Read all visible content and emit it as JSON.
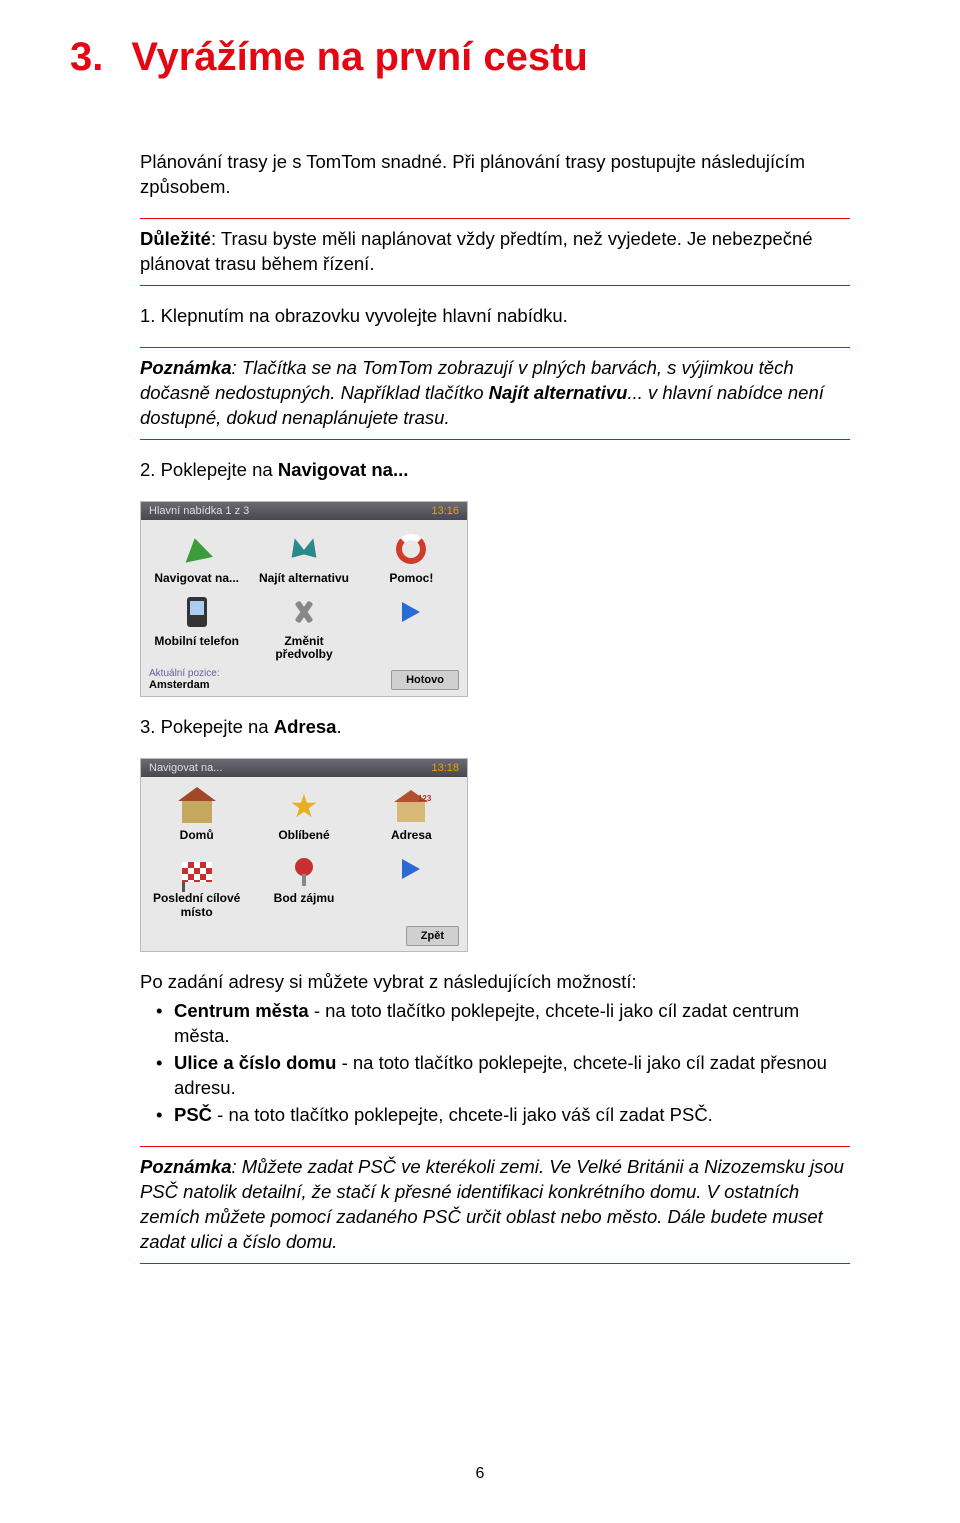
{
  "chapter": {
    "number": "3.",
    "title": "Vyrážíme na první cestu"
  },
  "intro": "Plánování trasy je s TomTom snadné. Při plánování trasy postupujte následujícím způsobem.",
  "warning": {
    "label": "Důležité",
    "text": ": Trasu byste měli naplánovat vždy předtím, než vyjedete. Je nebezpečné plánovat trasu během řízení."
  },
  "step1": "1. Klepnutím na obrazovku vyvolejte hlavní nabídku.",
  "note1": {
    "label": "Poznámka",
    "text1": ": Tlačítka se na TomTom zobrazují v plných barvách, s výjimkou těch dočasně nedostupných. Například tlačítko ",
    "bold": "Najít alternativu",
    "text2": "... v hlavní nabídce není dostupné, dokud nenaplánujete trasu."
  },
  "step2_pre": "2. Poklepejte na ",
  "step2_bold": "Navigovat na...",
  "screenshot1": {
    "header_left": "Hlavní nabídka 1 z 3",
    "header_time": "13:16",
    "cells": [
      {
        "label": "Navigovat na...",
        "icon": "arrow-green"
      },
      {
        "label": "Najít alternativu",
        "icon": "arrows-teal"
      },
      {
        "label": "Pomoc!",
        "icon": "ring"
      },
      {
        "label": "Mobilní telefon",
        "icon": "phone"
      },
      {
        "label": "Změnit předvolby",
        "icon": "wrench"
      },
      {
        "label": "",
        "icon": "play"
      }
    ],
    "footer_left_label": "Aktuální pozice:",
    "footer_left_value": "Amsterdam",
    "footer_button": "Hotovo"
  },
  "step3_pre": "3. Pokepejte na ",
  "step3_bold": "Adresa",
  "step3_post": ".",
  "screenshot2": {
    "header_left": "Navigovat na...",
    "header_time": "13:18",
    "cells": [
      {
        "label": "Domů",
        "icon": "house"
      },
      {
        "label": "Oblíbené",
        "icon": "star"
      },
      {
        "label": "Adresa",
        "icon": "house2"
      },
      {
        "label": "Poslední cílové místo",
        "icon": "flag"
      },
      {
        "label": "Bod zájmu",
        "icon": "pin"
      },
      {
        "label": "",
        "icon": "play"
      }
    ],
    "footer_button": "Zpět"
  },
  "options_intro": "Po zadání adresy si můžete vybrat z následujících možností:",
  "options": [
    {
      "bold": "Centrum města",
      "text": " - na toto tlačítko poklepejte, chcete-li jako cíl zadat centrum města."
    },
    {
      "bold": "Ulice a číslo domu",
      "text": " - na toto tlačítko poklepejte, chcete-li jako cíl zadat přesnou adresu."
    },
    {
      "bold": "PSČ",
      "text": " - na toto tlačítko poklepejte, chcete-li jako váš cíl zadat PSČ."
    }
  ],
  "note2": {
    "label": "Poznámka",
    "text": ": Můžete zadat PSČ ve kterékoli zemi. Ve Velké Británii a Nizozemsku jsou PSČ natolik detailní, že stačí k přesné identifikaci konkrétního domu. V ostatních zemích můžete pomocí zadaného PSČ určit oblast nebo město. Dále budete muset zadat ulici a číslo domu."
  },
  "page_number": "6"
}
